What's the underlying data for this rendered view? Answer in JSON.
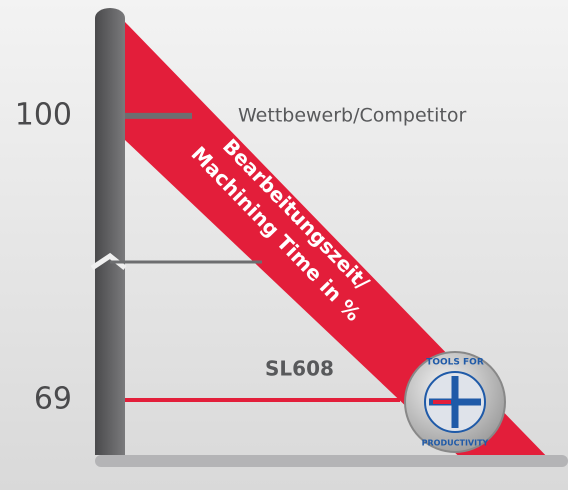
{
  "chart_data": {
    "type": "level",
    "categories": [
      "Wettbewerb/Competitor",
      "SL608"
    ],
    "values": [
      100,
      69
    ],
    "colors": [
      "#6d6e70",
      "#e31e3a"
    ],
    "ylim": [
      63,
      111
    ],
    "yticks": [
      69,
      100
    ],
    "annotations": [
      "Bearbeitungszeit/",
      "Machining Time in %"
    ],
    "badge": [
      "TOOLS FOR",
      "PRODUCTIVITY"
    ]
  }
}
